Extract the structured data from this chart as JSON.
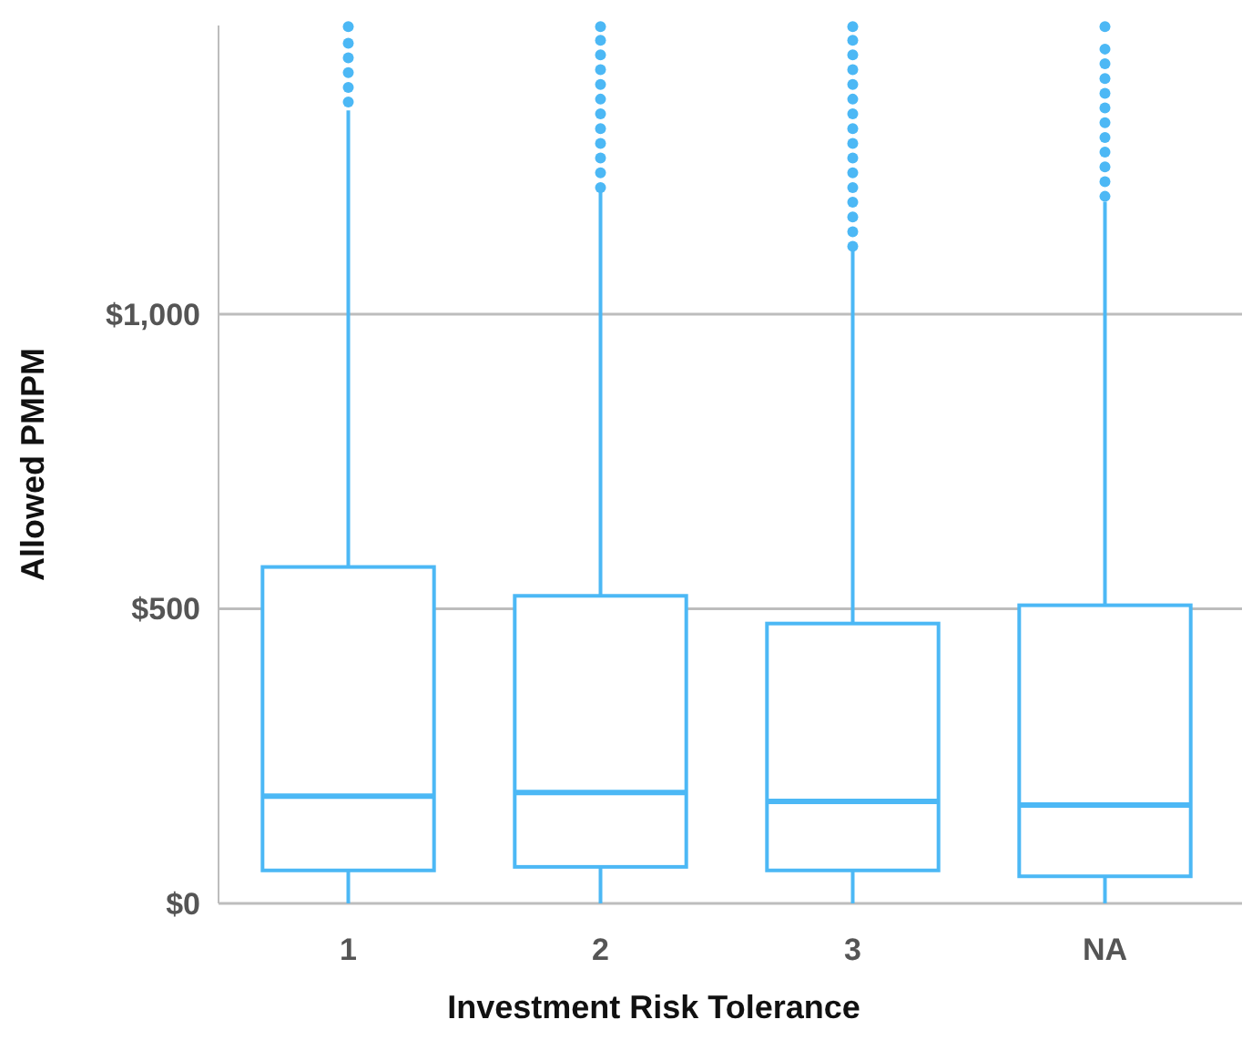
{
  "chart_data": {
    "type": "box",
    "xlabel": "Investment Risk Tolerance",
    "ylabel": "Allowed PMPM",
    "categories": [
      "1",
      "2",
      "3",
      "NA"
    ],
    "color": "#4cb8f5",
    "ylim": [
      0,
      1490
    ],
    "yticks": [
      {
        "value": 0,
        "label": "$0"
      },
      {
        "value": 500,
        "label": "$500"
      },
      {
        "value": 1000,
        "label": "$1,000"
      }
    ],
    "grid": "y",
    "boxes": [
      {
        "low": 0,
        "q1": 56,
        "median": 182,
        "q3": 571,
        "high": 1346,
        "outliers": [
          1360,
          1385,
          1410,
          1435,
          1460,
          1488
        ]
      },
      {
        "low": 0,
        "q1": 62,
        "median": 188,
        "q3": 522,
        "high": 1207,
        "outliers": [
          1215,
          1240,
          1265,
          1290,
          1315,
          1340,
          1365,
          1390,
          1415,
          1440,
          1465,
          1488
        ]
      },
      {
        "low": 0,
        "q1": 56,
        "median": 173,
        "q3": 475,
        "high": 1108,
        "outliers": [
          1115,
          1140,
          1165,
          1190,
          1215,
          1240,
          1265,
          1290,
          1315,
          1340,
          1365,
          1390,
          1415,
          1440,
          1465,
          1488
        ]
      },
      {
        "low": 0,
        "q1": 46,
        "median": 167,
        "q3": 506,
        "high": 1191,
        "outliers": [
          1200,
          1225,
          1250,
          1275,
          1300,
          1325,
          1350,
          1375,
          1400,
          1425,
          1450,
          1488
        ]
      }
    ]
  }
}
